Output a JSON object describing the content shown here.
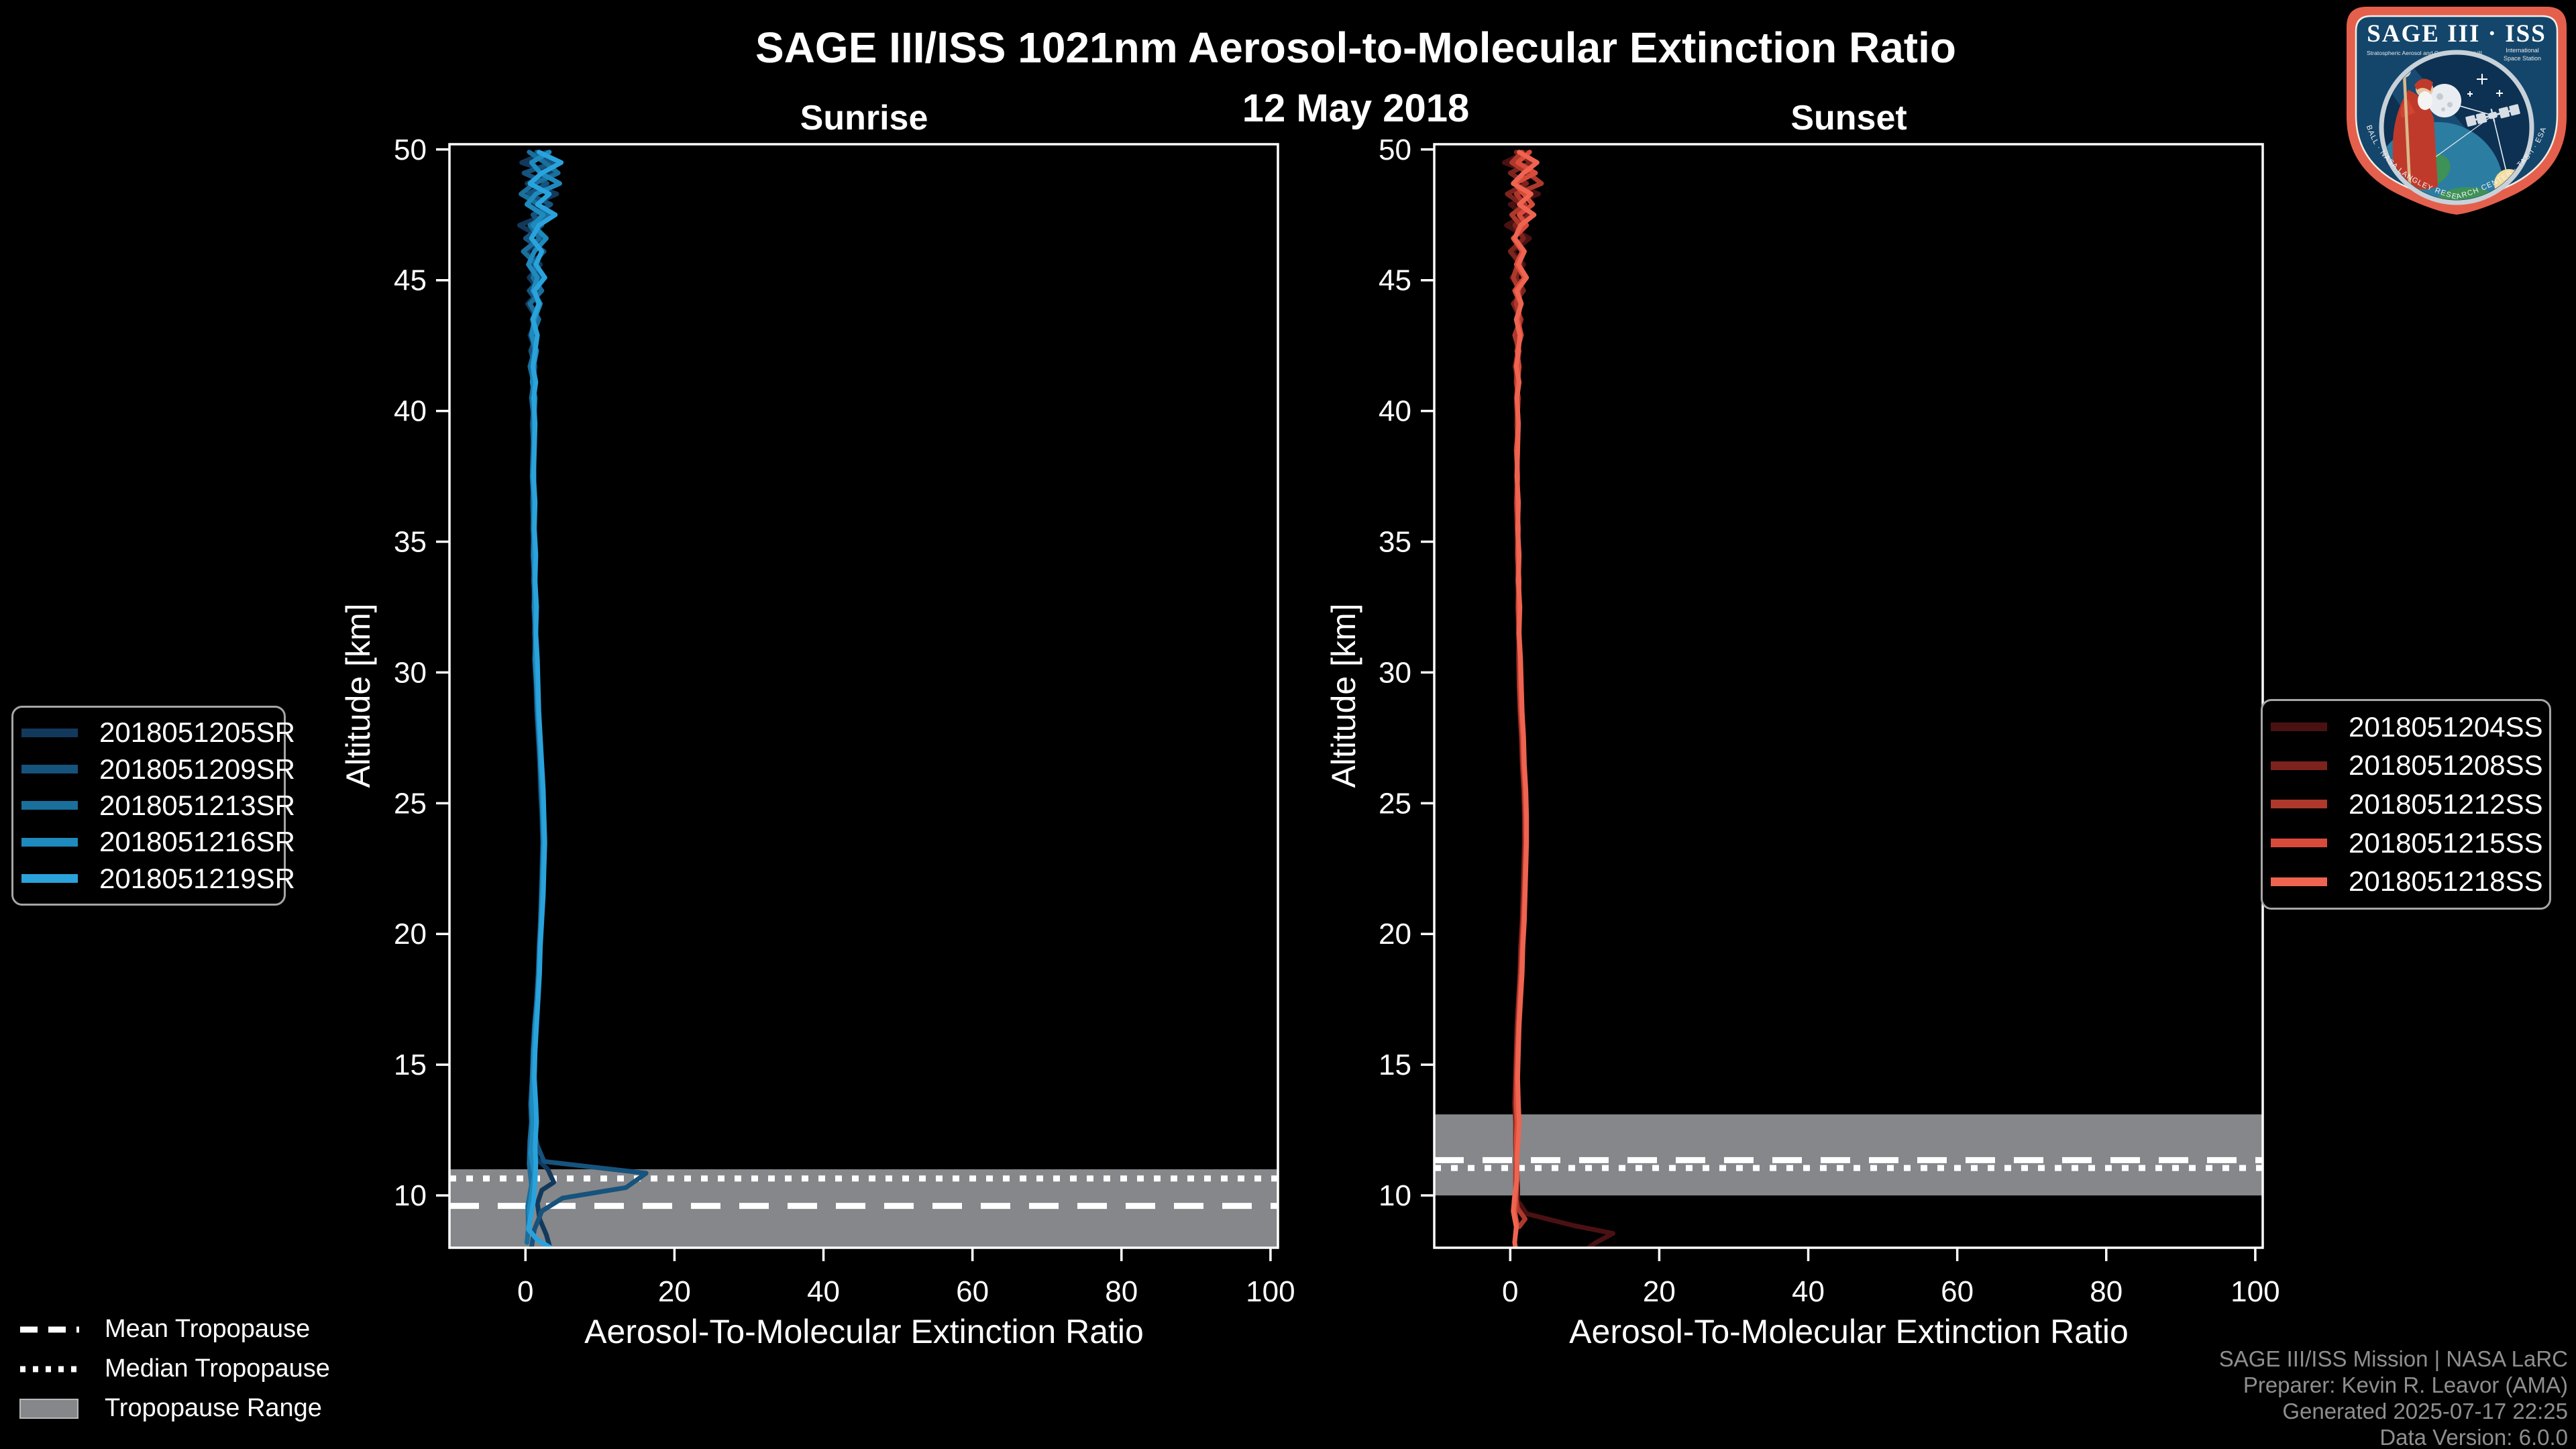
{
  "page": {
    "background": "#000000",
    "text_color": "#ffffff",
    "footer_color": "#8f8f8f"
  },
  "header": {
    "title": "SAGE III/ISS 1021nm Aerosol-to-Molecular Extinction Ratio",
    "date": "12 May 2018"
  },
  "logo": {
    "title": "SAGE III · ISS",
    "subtitle_left": "Stratospheric Aerosol and Gas Experiment III",
    "subtitle_right_1": "International",
    "subtitle_right_2": "Space Station",
    "rim_text": "BALL · NASA LANGLEY RESEARCH CENTER · TAS-I · ESA",
    "rim_color": "#e4604d",
    "field_color": "#14466b"
  },
  "tropopause_legend": {
    "items": [
      {
        "label": "Mean Tropopause",
        "style": "dashed"
      },
      {
        "label": "Median Tropopause",
        "style": "dotted"
      },
      {
        "label": "Tropopause Range",
        "style": "band"
      }
    ]
  },
  "footer": {
    "lines": [
      "SAGE III/ISS Mission | NASA LaRC",
      "Preparer: Kevin R. Leavor (AMA)",
      "Generated 2025-07-17 22:25",
      "Data Version: 6.0.0"
    ]
  },
  "chart_data": [
    {
      "type": "line",
      "title": "Sunrise",
      "xlabel": "Aerosol-To-Molecular Extinction Ratio",
      "ylabel": "Altitude [km]",
      "xlim": [
        -10.2,
        101
      ],
      "ylim": [
        8,
        50.2
      ],
      "xticks": [
        0,
        20,
        40,
        60,
        80,
        100
      ],
      "yticks": [
        10,
        15,
        20,
        25,
        30,
        35,
        40,
        45,
        50
      ],
      "grid": false,
      "legend_position": "outside-left",
      "tropopause": {
        "mean_km": 9.6,
        "median_km": 10.65,
        "range_km": [
          8.0,
          11.0
        ],
        "band_color": "#85878a",
        "line_color": "#ffffff"
      },
      "alt_grid": [
        49.9,
        49.5,
        49.1,
        48.7,
        48.3,
        47.9,
        47.5,
        47.1,
        46.6,
        46.1,
        45.6,
        45.1,
        44.6,
        44.1,
        43.5,
        42.9,
        42.3,
        41.7,
        41.1,
        40.5,
        39.5,
        38.5,
        37.5,
        36.5,
        35.5,
        34.5,
        33.5,
        32.5,
        31.5,
        30.5,
        29.5,
        28.5,
        27.5,
        26.5,
        25.5,
        24.5,
        23.5,
        22.5,
        21.5,
        20.5,
        19.5,
        18.5,
        17.5,
        16.5,
        15.5,
        14.5,
        13.5,
        12.8
      ],
      "series": [
        {
          "name": "2018051205SR",
          "color": "#12395c",
          "x": [
            2.8,
            -0.5,
            3.6,
            0.2,
            4.2,
            0.8,
            2.6,
            -0.8,
            2.4,
            0.1,
            2.0,
            0.5,
            1.9,
            0.3,
            1.6,
            0.6,
            1.4,
            0.8,
            1.3,
            0.9,
            1.1,
            1.0,
            1.2,
            0.9,
            1.1,
            1.0,
            1.2,
            1.1,
            1.3,
            1.2,
            1.4,
            1.5,
            1.7,
            1.9,
            2.0,
            2.2,
            2.3,
            2.2,
            2.1,
            2.0,
            1.8,
            1.7,
            1.5,
            1.3,
            1.1,
            0.9,
            0.8,
            0.9
          ],
          "tail": [
            [
              1.2,
              12.2
            ],
            [
              1.5,
              11.4
            ],
            [
              3.0,
              11.0
            ],
            [
              3.8,
              10.5
            ],
            [
              2.2,
              10.2
            ],
            [
              1.6,
              9.7
            ],
            [
              1.9,
              9.1
            ],
            [
              2.8,
              8.5
            ],
            [
              3.3,
              8.0
            ]
          ]
        },
        {
          "name": "2018051209SR",
          "color": "#16537d",
          "x": [
            1.5,
            3.8,
            -0.2,
            2.9,
            0.4,
            3.4,
            1.0,
            2.2,
            0.0,
            2.5,
            0.8,
            2.1,
            0.5,
            1.8,
            0.9,
            1.5,
            0.7,
            1.3,
            1.0,
            1.2,
            0.9,
            1.1,
            1.0,
            1.2,
            1.1,
            1.0,
            1.2,
            1.3,
            1.2,
            1.4,
            1.5,
            1.6,
            1.8,
            2.0,
            2.1,
            2.3,
            2.4,
            2.3,
            2.2,
            2.0,
            1.9,
            1.7,
            1.5,
            1.2,
            1.0,
            0.9,
            1.0,
            1.1
          ],
          "tail": [
            [
              1.3,
              12.3
            ],
            [
              1.6,
              11.9
            ],
            [
              2.5,
              11.3
            ],
            [
              16.2,
              10.85
            ],
            [
              13.5,
              10.3
            ],
            [
              5.0,
              9.9
            ],
            [
              2.2,
              9.4
            ],
            [
              1.2,
              8.7
            ],
            [
              0.8,
              8.0
            ]
          ]
        },
        {
          "name": "2018051213SR",
          "color": "#1a6f9c",
          "x": [
            0.5,
            2.6,
            4.4,
            1.2,
            -0.6,
            1.8,
            3.0,
            0.6,
            1.9,
            -0.3,
            1.5,
            1.0,
            2.2,
            0.6,
            1.8,
            0.9,
            1.2,
            0.6,
            1.1,
            0.8,
            1.2,
            1.0,
            0.9,
            1.1,
            1.0,
            1.2,
            1.1,
            1.3,
            1.4,
            1.3,
            1.5,
            1.6,
            1.8,
            2.1,
            2.2,
            2.4,
            2.5,
            2.4,
            2.2,
            2.1,
            1.9,
            1.8,
            1.6,
            1.4,
            1.1,
            0.9,
            0.7,
            0.8
          ],
          "tail": [
            [
              0.6,
              12.1
            ],
            [
              0.5,
              11.2
            ],
            [
              0.8,
              10.4
            ],
            [
              0.3,
              9.6
            ],
            [
              0.4,
              8.8
            ],
            [
              0.2,
              8.2
            ]
          ]
        },
        {
          "name": "2018051216SR",
          "color": "#1e8abd",
          "x": [
            3.2,
            0.8,
            2.0,
            4.6,
            1.4,
            0.2,
            2.4,
            1.0,
            2.8,
            1.2,
            0.4,
            1.6,
            1.0,
            2.0,
            1.2,
            0.8,
            1.5,
            1.1,
            0.9,
            1.3,
            1.1,
            1.2,
            1.0,
            1.1,
            1.2,
            1.1,
            1.3,
            1.2,
            1.4,
            1.3,
            1.5,
            1.7,
            1.9,
            2.0,
            2.2,
            2.3,
            2.4,
            2.3,
            2.2,
            2.1,
            1.9,
            1.8,
            1.6,
            1.3,
            1.1,
            1.0,
            0.9,
            1.0
          ],
          "tail": [
            [
              0.9,
              12.2
            ],
            [
              0.7,
              11.6
            ],
            [
              1.2,
              10.8
            ],
            [
              0.8,
              10.0
            ],
            [
              0.5,
              9.4
            ],
            [
              0.6,
              9.0
            ]
          ]
        },
        {
          "name": "2018051219SR",
          "color": "#2aa3dc",
          "x": [
            1.8,
            4.8,
            2.2,
            0.6,
            3.2,
            1.6,
            4.0,
            1.8,
            0.8,
            2.2,
            1.4,
            2.6,
            1.2,
            1.8,
            1.0,
            1.6,
            1.3,
            1.0,
            1.4,
            1.1,
            1.3,
            1.2,
            1.1,
            1.3,
            1.2,
            1.4,
            1.3,
            1.5,
            1.4,
            1.6,
            1.7,
            1.8,
            2.0,
            2.2,
            2.4,
            2.5,
            2.6,
            2.5,
            2.4,
            2.2,
            2.0,
            1.9,
            1.7,
            1.5,
            1.3,
            1.2,
            1.4,
            1.5
          ],
          "tail": [
            [
              1.4,
              12.4
            ],
            [
              1.3,
              11.8
            ],
            [
              1.4,
              11.2
            ],
            [
              1.3,
              10.5
            ],
            [
              1.1,
              9.8
            ],
            [
              0.7,
              9.2
            ],
            [
              0.4,
              8.7
            ],
            [
              1.6,
              8.3
            ],
            [
              3.4,
              8.0
            ]
          ]
        }
      ]
    },
    {
      "type": "line",
      "title": "Sunset",
      "xlabel": "Aerosol-To-Molecular Extinction Ratio",
      "ylabel": "Altitude [km]",
      "xlim": [
        -10.2,
        101
      ],
      "ylim": [
        8,
        50.2
      ],
      "xticks": [
        0,
        20,
        40,
        60,
        80,
        100
      ],
      "yticks": [
        10,
        15,
        20,
        25,
        30,
        35,
        40,
        45,
        50
      ],
      "grid": false,
      "legend_position": "outside-right",
      "tropopause": {
        "mean_km": 11.35,
        "median_km": 11.05,
        "range_km": [
          10.0,
          13.1
        ],
        "band_color": "#85878a",
        "line_color": "#ffffff"
      },
      "alt_grid": [
        49.9,
        49.5,
        49.1,
        48.7,
        48.3,
        47.9,
        47.5,
        47.1,
        46.6,
        46.1,
        45.6,
        45.1,
        44.6,
        44.1,
        43.5,
        42.9,
        42.3,
        41.7,
        41.1,
        40.5,
        39.5,
        38.5,
        37.5,
        36.5,
        35.5,
        34.5,
        33.5,
        32.5,
        31.5,
        30.5,
        29.5,
        28.5,
        27.5,
        26.5,
        25.5,
        24.5,
        23.5,
        22.5,
        21.5,
        20.5,
        19.5,
        18.5,
        17.5,
        16.5,
        15.5,
        14.5,
        13.5,
        12.8
      ],
      "series": [
        {
          "name": "2018051204SS",
          "color": "#4a1113",
          "x": [
            2.2,
            -0.8,
            3.0,
            0.4,
            3.8,
            0.0,
            2.0,
            -0.5,
            2.6,
            0.3,
            1.8,
            0.2,
            1.6,
            0.5,
            1.3,
            0.7,
            1.1,
            0.6,
            1.0,
            0.8,
            0.9,
            1.0,
            0.8,
            0.9,
            1.0,
            0.9,
            1.1,
            1.0,
            1.1,
            1.2,
            1.3,
            1.4,
            1.5,
            1.7,
            1.8,
            1.9,
            2.0,
            1.9,
            1.8,
            1.7,
            1.5,
            1.4,
            1.2,
            1.0,
            0.9,
            0.8,
            0.7,
            0.8
          ],
          "tail": [
            [
              0.8,
              12.0
            ],
            [
              0.9,
              11.0
            ],
            [
              1.0,
              10.2
            ],
            [
              1.0,
              9.8
            ],
            [
              2.2,
              9.3
            ],
            [
              8.5,
              8.85
            ],
            [
              13.8,
              8.55
            ],
            [
              11.5,
              8.2
            ],
            [
              10.5,
              8.0
            ]
          ]
        },
        {
          "name": "2018051208SS",
          "color": "#7c231e",
          "x": [
            0.8,
            2.8,
            0.0,
            2.2,
            -0.4,
            1.6,
            2.6,
            0.6,
            1.8,
            0.0,
            1.4,
            0.8,
            1.8,
            0.4,
            1.5,
            0.8,
            1.0,
            0.7,
            1.1,
            0.8,
            1.0,
            0.9,
            1.0,
            0.8,
            0.9,
            1.0,
            1.1,
            1.0,
            1.2,
            1.1,
            1.2,
            1.3,
            1.5,
            1.6,
            1.8,
            1.9,
            1.9,
            1.8,
            1.7,
            1.6,
            1.4,
            1.3,
            1.1,
            0.9,
            0.8,
            0.7,
            0.6,
            0.7
          ],
          "tail": [
            [
              0.7,
              12.0
            ],
            [
              0.8,
              11.0
            ],
            [
              0.8,
              10.2
            ],
            [
              0.5,
              9.8
            ],
            [
              0.7,
              9.4
            ]
          ]
        },
        {
          "name": "2018051212SS",
          "color": "#ad382b",
          "x": [
            1.6,
            0.2,
            2.4,
            4.2,
            0.8,
            2.0,
            0.2,
            1.4,
            0.6,
            1.8,
            1.0,
            0.4,
            1.2,
            0.8,
            1.4,
            0.6,
            1.2,
            0.9,
            0.8,
            1.1,
            0.9,
            1.0,
            0.9,
            1.1,
            1.0,
            1.1,
            1.0,
            1.2,
            1.1,
            1.3,
            1.2,
            1.4,
            1.6,
            1.7,
            1.9,
            2.0,
            2.1,
            2.0,
            1.9,
            1.7,
            1.6,
            1.4,
            1.2,
            1.1,
            0.9,
            0.8,
            0.8,
            0.9
          ],
          "tail": [
            [
              0.8,
              12.0
            ],
            [
              0.7,
              10.9
            ],
            [
              0.7,
              10.0
            ],
            [
              1.0,
              9.5
            ],
            [
              2.0,
              9.1
            ],
            [
              1.2,
              8.8
            ]
          ]
        },
        {
          "name": "2018051215SS",
          "color": "#d84b3a",
          "x": [
            2.6,
            1.0,
            3.4,
            0.6,
            1.8,
            3.0,
            1.2,
            2.2,
            0.4,
            1.6,
            0.8,
            1.9,
            0.6,
            1.4,
            1.0,
            1.5,
            0.9,
            1.2,
            1.0,
            0.9,
            1.1,
            0.8,
            1.0,
            0.9,
            1.1,
            1.0,
            1.2,
            1.1,
            1.2,
            1.3,
            1.4,
            1.5,
            1.7,
            1.8,
            2.0,
            2.1,
            2.1,
            2.0,
            1.9,
            1.8,
            1.6,
            1.5,
            1.3,
            1.1,
            1.0,
            0.9,
            0.8,
            0.9
          ],
          "tail": [
            [
              0.8,
              12.1
            ],
            [
              0.9,
              11.1
            ],
            [
              0.8,
              10.0
            ],
            [
              0.6,
              9.4
            ],
            [
              0.9,
              8.9
            ],
            [
              0.7,
              8.5
            ]
          ]
        },
        {
          "name": "2018051218SS",
          "color": "#ef6450",
          "x": [
            1.2,
            3.6,
            1.8,
            0.4,
            2.8,
            1.2,
            3.2,
            1.4,
            0.6,
            1.9,
            1.1,
            2.2,
            0.9,
            1.5,
            0.8,
            1.3,
            1.1,
            0.8,
            1.2,
            0.9,
            1.1,
            1.0,
            0.9,
            1.1,
            1.0,
            1.2,
            1.1,
            1.3,
            1.2,
            1.4,
            1.5,
            1.6,
            1.8,
            1.9,
            2.1,
            2.2,
            2.2,
            2.1,
            2.0,
            1.9,
            1.7,
            1.6,
            1.4,
            1.2,
            1.1,
            1.0,
            1.1,
            1.2
          ],
          "tail": [
            [
              1.1,
              12.2
            ],
            [
              0.9,
              11.4
            ],
            [
              0.9,
              10.6
            ],
            [
              0.6,
              10.0
            ],
            [
              0.4,
              9.4
            ],
            [
              0.8,
              8.8
            ],
            [
              0.6,
              8.2
            ],
            [
              0.7,
              8.0
            ]
          ]
        }
      ]
    }
  ]
}
